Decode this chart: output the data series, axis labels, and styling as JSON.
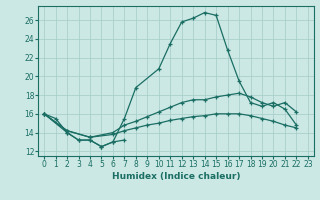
{
  "xlabel": "Humidex (Indice chaleur)",
  "background_color": "#cce8e4",
  "grid_color": "#aacfcb",
  "line_color": "#1a6e64",
  "xlim": [
    -0.5,
    23.5
  ],
  "ylim": [
    11.5,
    27.5
  ],
  "yticks": [
    12,
    14,
    16,
    18,
    20,
    22,
    24,
    26
  ],
  "xticks": [
    0,
    1,
    2,
    3,
    4,
    5,
    6,
    7,
    8,
    9,
    10,
    11,
    12,
    13,
    14,
    15,
    16,
    17,
    18,
    19,
    20,
    21,
    22,
    23
  ],
  "series1_x": [
    0,
    1,
    2,
    3,
    4,
    5,
    6,
    7
  ],
  "series1_y": [
    16.0,
    15.5,
    14.0,
    13.2,
    13.2,
    12.5,
    13.0,
    13.2
  ],
  "series2_x": [
    0,
    2,
    3,
    4,
    5,
    6,
    7,
    8,
    10,
    11,
    12,
    13,
    14,
    15,
    16,
    17,
    18,
    19,
    20,
    21,
    22
  ],
  "series2_y": [
    16.0,
    14.0,
    13.2,
    13.2,
    12.5,
    13.0,
    15.5,
    18.8,
    20.8,
    23.5,
    25.8,
    26.2,
    26.8,
    26.5,
    22.8,
    19.5,
    17.2,
    16.8,
    17.2,
    16.5,
    14.8
  ],
  "series3_x": [
    0,
    2,
    4,
    6,
    7,
    8,
    9,
    10,
    11,
    12,
    13,
    14,
    15,
    16,
    17,
    18,
    19,
    20,
    21,
    22
  ],
  "series3_y": [
    16.0,
    14.2,
    13.5,
    14.0,
    14.8,
    15.2,
    15.7,
    16.2,
    16.7,
    17.2,
    17.5,
    17.5,
    17.8,
    18.0,
    18.2,
    17.8,
    17.2,
    16.8,
    17.2,
    16.2
  ],
  "series4_x": [
    0,
    2,
    4,
    6,
    7,
    8,
    9,
    10,
    11,
    12,
    13,
    14,
    15,
    16,
    17,
    18,
    19,
    20,
    21,
    22
  ],
  "series4_y": [
    16.0,
    14.2,
    13.5,
    13.8,
    14.2,
    14.5,
    14.8,
    15.0,
    15.3,
    15.5,
    15.7,
    15.8,
    16.0,
    16.0,
    16.0,
    15.8,
    15.5,
    15.2,
    14.8,
    14.5
  ]
}
